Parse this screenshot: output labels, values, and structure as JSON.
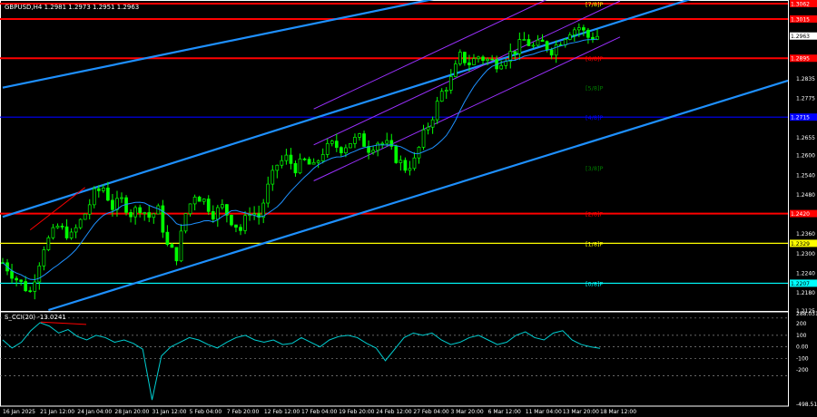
{
  "header": {
    "symbol_title": "GBPUSD,H4  1.2981 1.2973 1.2951 1.2963"
  },
  "indicator": {
    "title": "S_CCI(20) -13.0241"
  },
  "colors": {
    "background": "#000000",
    "candle": "#00ff00",
    "ma": "#1e90ff",
    "channel": "#1e90ff",
    "regression": "#9b30ff",
    "level_red": "#ff0000",
    "level_blue": "#0000ff",
    "level_yellow": "#ffff00",
    "level_cyan": "#00ffff",
    "cci": "#00ced1"
  },
  "chart_data": [
    {
      "type": "candlestick",
      "title": "GBPUSD,H4  1.2981 1.2973 1.2951 1.2963",
      "ylim": [
        1.2125,
        1.3062
      ],
      "y_ticks": [
        "1.3062",
        "1.3015",
        "1.2963",
        "1.2895",
        "1.2835",
        "1.2775",
        "1.2715",
        "1.2655",
        "1.2600",
        "1.2540",
        "1.2480",
        "1.2420",
        "1.2360",
        "1.2300",
        "1.2240",
        "1.2180",
        "1.2125"
      ],
      "x_ticks": [
        "16 Jan 2025",
        "21 Jan 12:00",
        "24 Jan 04:00",
        "28 Jan 20:00",
        "31 Jan 12:00",
        "5 Feb 04:00",
        "7 Feb 20:00",
        "12 Feb 12:00",
        "17 Feb 04:00",
        "19 Feb 20:00",
        "24 Feb 12:00",
        "27 Feb 04:00",
        "3 Mar 20:00",
        "6 Mar 12:00",
        "11 Mar 04:00",
        "13 Mar 20:00",
        "18 Mar 12:00"
      ],
      "close_path": [
        [
          0,
          1.227
        ],
        [
          3,
          1.222
        ],
        [
          6,
          1.218
        ],
        [
          9,
          1.232
        ],
        [
          12,
          1.238
        ],
        [
          15,
          1.235
        ],
        [
          18,
          1.242
        ],
        [
          20,
          1.248
        ],
        [
          22,
          1.25
        ],
        [
          24,
          1.244
        ],
        [
          26,
          1.246
        ],
        [
          28,
          1.242
        ],
        [
          30,
          1.244
        ],
        [
          32,
          1.241
        ],
        [
          34,
          1.243
        ],
        [
          36,
          1.232
        ],
        [
          38,
          1.229
        ],
        [
          40,
          1.242
        ],
        [
          42,
          1.248
        ],
        [
          44,
          1.246
        ],
        [
          46,
          1.242
        ],
        [
          48,
          1.244
        ],
        [
          50,
          1.24
        ],
        [
          52,
          1.237
        ],
        [
          54,
          1.243
        ],
        [
          56,
          1.241
        ],
        [
          58,
          1.25
        ],
        [
          60,
          1.257
        ],
        [
          62,
          1.259
        ],
        [
          64,
          1.256
        ],
        [
          66,
          1.258
        ],
        [
          68,
          1.256
        ],
        [
          70,
          1.261
        ],
        [
          72,
          1.263
        ],
        [
          74,
          1.262
        ],
        [
          76,
          1.264
        ],
        [
          78,
          1.265
        ],
        [
          80,
          1.262
        ],
        [
          82,
          1.264
        ],
        [
          84,
          1.263
        ],
        [
          86,
          1.259
        ],
        [
          88,
          1.256
        ],
        [
          90,
          1.258
        ],
        [
          92,
          1.266
        ],
        [
          94,
          1.272
        ],
        [
          96,
          1.279
        ],
        [
          98,
          1.283
        ],
        [
          100,
          1.29
        ],
        [
          102,
          1.288
        ],
        [
          104,
          1.29
        ],
        [
          106,
          1.289
        ],
        [
          108,
          1.288
        ],
        [
          110,
          1.29
        ],
        [
          112,
          1.292
        ],
        [
          114,
          1.295
        ],
        [
          116,
          1.293
        ],
        [
          118,
          1.294
        ],
        [
          120,
          1.292
        ],
        [
          122,
          1.295
        ],
        [
          124,
          1.298
        ],
        [
          126,
          1.299
        ],
        [
          128,
          1.296
        ],
        [
          130,
          1.2963
        ]
      ],
      "bars_total": 131,
      "horizontal_levels": [
        {
          "label": "1.3062",
          "value": 1.3062,
          "color": "#ff0000"
        },
        {
          "label": "1.3015",
          "value": 1.3015,
          "color": "#ff0000"
        },
        {
          "label": "1.2963",
          "value": 1.2963,
          "color": "#ffffff"
        },
        {
          "label": "1.2895",
          "value": 1.2895,
          "color": "#ff0000"
        },
        {
          "label": "1.2715",
          "value": 1.2715,
          "color": "#0000ff"
        },
        {
          "label": "1.2420",
          "value": 1.242,
          "color": "#ff0000"
        },
        {
          "label": "1.2329",
          "value": 1.2329,
          "color": "#ffff00"
        },
        {
          "label": "1.2207",
          "value": 1.2207,
          "color": "#00ffff"
        }
      ],
      "murrey_labels": [
        {
          "text": "[7/8]P",
          "value": 1.3062,
          "color": "#ffff00"
        },
        {
          "text": "[6/8]P",
          "value": 1.2895,
          "color": "#ff0000"
        },
        {
          "text": "[5/8]P",
          "value": 1.2805,
          "color": "#008000"
        },
        {
          "text": "[4/8]P",
          "value": 1.2715,
          "color": "#0000ff"
        },
        {
          "text": "[3/8]P",
          "value": 1.256,
          "color": "#008000"
        },
        {
          "text": "[2/8]P",
          "value": 1.242,
          "color": "#ff0000"
        },
        {
          "text": "[1/8]P",
          "value": 1.2329,
          "color": "#ffff00"
        },
        {
          "text": "[0/8]P",
          "value": 1.2207,
          "color": "#00ffff"
        }
      ]
    },
    {
      "type": "line",
      "title": "S_CCI(20) -13.0241",
      "ylim": [
        -498.5138,
        288.0311
      ],
      "y_ticks": [
        "288.0311",
        "200",
        "100",
        "0.00",
        "-100",
        "-200",
        "-498.5138"
      ],
      "levels": [
        250,
        100,
        0,
        -100,
        -250
      ],
      "values": [
        60,
        -10,
        40,
        140,
        210,
        180,
        120,
        150,
        90,
        60,
        100,
        80,
        40,
        60,
        30,
        -20,
        -460,
        -80,
        0,
        40,
        80,
        60,
        20,
        -10,
        40,
        80,
        100,
        60,
        40,
        60,
        20,
        30,
        80,
        40,
        0,
        60,
        90,
        100,
        80,
        30,
        -10,
        -120,
        -20,
        80,
        120,
        100,
        120,
        60,
        20,
        40,
        80,
        100,
        60,
        20,
        40,
        100,
        130,
        80,
        60,
        120,
        140,
        60,
        20,
        0,
        -13
      ]
    }
  ]
}
